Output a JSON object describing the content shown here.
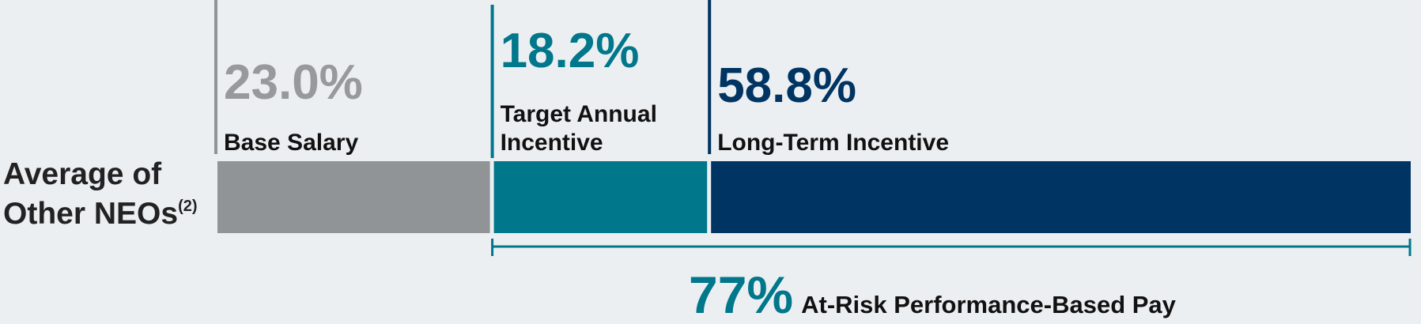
{
  "chart_data": {
    "type": "stacked-bar-horizontal",
    "category": "Average of Other NEOs",
    "category_footnote": "(2)",
    "series": [
      {
        "name": "Base Salary",
        "color": "#919497",
        "label_color": "#97999b",
        "values": [
          23.0
        ],
        "value_labels": [
          "23.0%"
        ]
      },
      {
        "name": "Target Annual Incentive",
        "color": "#00778b",
        "label_color": "#00778b",
        "values": [
          18.2
        ],
        "value_labels": [
          "18.2%"
        ]
      },
      {
        "name": "Long-Term Incentive",
        "color": "#003462",
        "label_color": "#003462",
        "values": [
          58.8
        ],
        "value_labels": [
          "58.8%"
        ]
      }
    ],
    "at_risk": {
      "value": 77,
      "label": "77%",
      "text": "At-Risk Performance-Based Pay",
      "color": "#00778b"
    }
  }
}
